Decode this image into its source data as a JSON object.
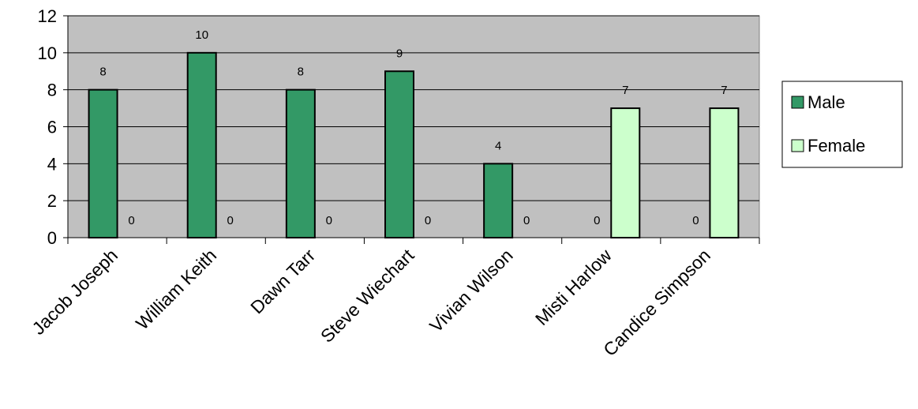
{
  "chart_data": {
    "type": "bar",
    "categories": [
      "Jacob Joseph",
      "William Keith",
      "Dawn Tarr",
      "Steve Wiechart",
      "Vivian Wilson",
      "Misti Harlow",
      "Candice Simpson"
    ],
    "series": [
      {
        "name": "Male",
        "values": [
          8,
          10,
          8,
          9,
          4,
          0,
          0
        ],
        "color": "#339966"
      },
      {
        "name": "Female",
        "values": [
          0,
          0,
          0,
          0,
          0,
          7,
          7
        ],
        "color": "#ccffcc"
      }
    ],
    "ylim": [
      0,
      12
    ],
    "yticks": [
      0,
      2,
      4,
      6,
      8,
      10,
      12
    ],
    "grid": true,
    "plot_background": "#c0c0c0",
    "legend_position": "right",
    "data_labels": true
  }
}
